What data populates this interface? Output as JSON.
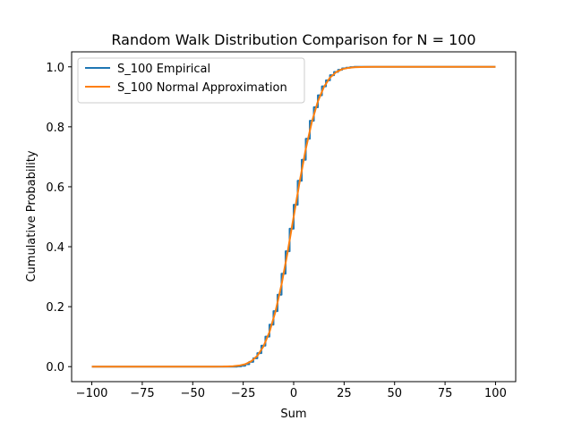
{
  "chart_data": {
    "type": "line",
    "title": "Random Walk Distribution Comparison for N = 100",
    "xlabel": "Sum",
    "ylabel": "Cumulative Probability",
    "xlim": [
      -100,
      100
    ],
    "ylim": [
      0,
      1
    ],
    "xticks": [
      -100,
      -75,
      -50,
      -25,
      0,
      25,
      50,
      75,
      100
    ],
    "yticks": [
      0.0,
      0.2,
      0.4,
      0.6,
      0.8,
      1.0
    ],
    "xtick_labels": [
      "−100",
      "−75",
      "−50",
      "−25",
      "0",
      "25",
      "50",
      "75",
      "100"
    ],
    "ytick_labels": [
      "0.0",
      "0.2",
      "0.4",
      "0.6",
      "0.8",
      "1.0"
    ],
    "grid": false,
    "legend_position": "top-left",
    "series": [
      {
        "name": "S_100 Empirical",
        "color": "#1f77b4",
        "style": "step",
        "x": [
          -100,
          -30,
          -28,
          -26,
          -24,
          -22,
          -20,
          -18,
          -16,
          -14,
          -12,
          -10,
          -8,
          -6,
          -4,
          -2,
          0,
          2,
          4,
          6,
          8,
          10,
          12,
          14,
          16,
          18,
          20,
          22,
          24,
          26,
          28,
          30,
          100
        ],
        "y": [
          0.0,
          0.0,
          0.001,
          0.003,
          0.008,
          0.016,
          0.028,
          0.045,
          0.07,
          0.1,
          0.14,
          0.185,
          0.24,
          0.31,
          0.385,
          0.46,
          0.54,
          0.62,
          0.69,
          0.76,
          0.82,
          0.865,
          0.905,
          0.935,
          0.955,
          0.972,
          0.983,
          0.99,
          0.995,
          0.997,
          0.999,
          1.0,
          1.0
        ]
      },
      {
        "name": "S_100 Normal Approximation",
        "color": "#ff7f0e",
        "style": "line",
        "x": [
          -100,
          -40,
          -35,
          -30,
          -27,
          -24,
          -21,
          -18,
          -15,
          -12,
          -9,
          -6,
          -3,
          0,
          3,
          6,
          9,
          12,
          15,
          18,
          21,
          24,
          27,
          30,
          35,
          40,
          100
        ],
        "y": [
          0.0,
          0.0,
          0.0002,
          0.0013,
          0.0035,
          0.0082,
          0.018,
          0.036,
          0.067,
          0.115,
          0.184,
          0.274,
          0.382,
          0.5,
          0.618,
          0.726,
          0.816,
          0.885,
          0.933,
          0.964,
          0.982,
          0.992,
          0.9965,
          0.9987,
          0.9998,
          1.0,
          1.0
        ]
      }
    ]
  }
}
